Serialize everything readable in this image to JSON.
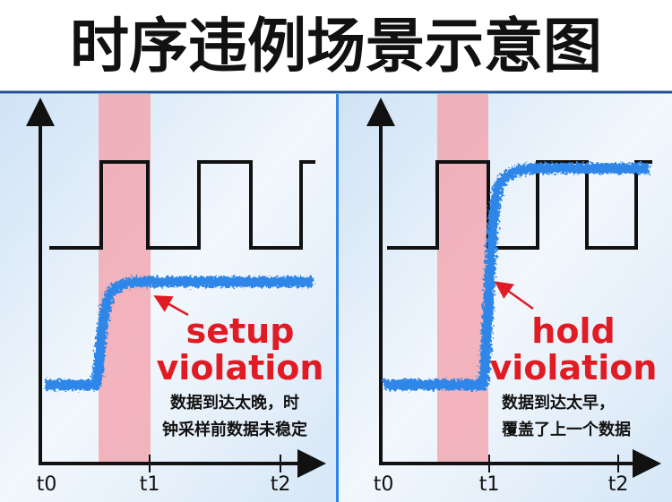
{
  "title": "时序违例场景示意图",
  "panels": [
    {
      "label_lines": [
        "setup",
        "violation"
      ],
      "description_lines": [
        "数据到达太晚，时",
        "钟采样前数据未稳定"
      ],
      "time_labels": [
        "t0",
        "t1",
        "t2"
      ]
    },
    {
      "label_lines": [
        "hold",
        "violation"
      ],
      "description_lines": [
        "数据到达太早，",
        "覆盖了上一个数据"
      ],
      "time_labels": [
        "t0",
        "t1",
        "t2"
      ]
    }
  ]
}
